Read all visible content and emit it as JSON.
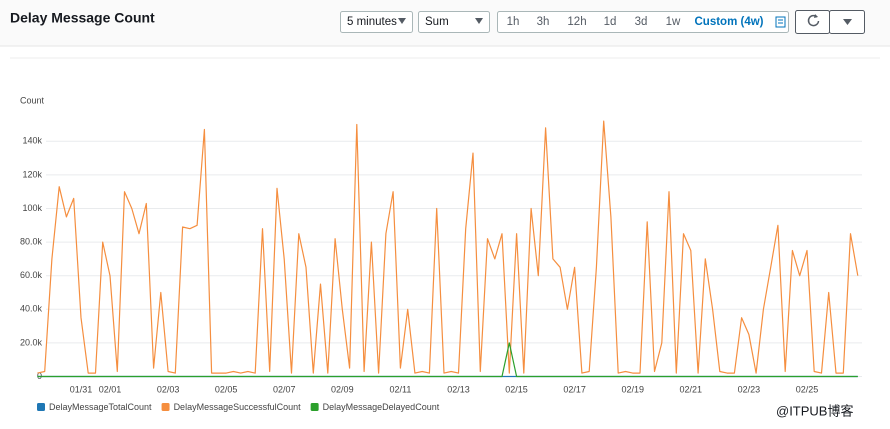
{
  "chart_data": {
    "type": "line",
    "title": "Delay Message Count",
    "y_label": "Count",
    "categories": [
      null,
      null,
      null,
      null,
      null,
      null,
      "01/31",
      null,
      null,
      null,
      "02/01",
      null,
      null,
      null,
      null,
      null,
      null,
      null,
      "02/03",
      null,
      null,
      null,
      null,
      null,
      null,
      null,
      "02/05",
      null,
      null,
      null,
      null,
      null,
      null,
      null,
      "02/07",
      null,
      null,
      null,
      null,
      null,
      null,
      null,
      "02/09",
      null,
      null,
      null,
      null,
      null,
      null,
      null,
      "02/11",
      null,
      null,
      null,
      null,
      null,
      null,
      null,
      "02/13",
      null,
      null,
      null,
      null,
      null,
      null,
      null,
      "02/15",
      null,
      null,
      null,
      null,
      null,
      null,
      null,
      "02/17",
      null,
      null,
      null,
      null,
      null,
      null,
      null,
      "02/19",
      null,
      null,
      null,
      null,
      null,
      null,
      null,
      "02/21",
      null,
      null,
      null,
      null,
      null,
      null,
      null,
      "02/23",
      null,
      null,
      null,
      null,
      null,
      null,
      null,
      "02/25",
      null,
      null,
      null,
      null,
      null,
      null,
      null
    ],
    "series": [
      {
        "name": "DelayMessageTotalCount",
        "color": "#1f77b4",
        "values": [
          0,
          0,
          0,
          0,
          0,
          0,
          0,
          0,
          0,
          0,
          0,
          0,
          0,
          0,
          0,
          0,
          0,
          0,
          0,
          0,
          0,
          0,
          0,
          0,
          0,
          0,
          0,
          0,
          0,
          0,
          0,
          0,
          0,
          0,
          0,
          0,
          0,
          0,
          0,
          0,
          0,
          0,
          0,
          0,
          0,
          0,
          0,
          0,
          0,
          0,
          0,
          0,
          0,
          0,
          0,
          0,
          0,
          0,
          0,
          0,
          0,
          0,
          0,
          0,
          0,
          0,
          0,
          0,
          0,
          0,
          0,
          0,
          0,
          0,
          0,
          0,
          0,
          0,
          0,
          0,
          0,
          0,
          0,
          0,
          0,
          0,
          0,
          0,
          0,
          0,
          0,
          0,
          0,
          0,
          0,
          0,
          0,
          0,
          0,
          0,
          0,
          0,
          0,
          0,
          0,
          0,
          0,
          0,
          0,
          0,
          0,
          0,
          0,
          0
        ]
      },
      {
        "name": "DelayMessageSuccessfulCount",
        "color": "#f58e3f",
        "values": [
          2000,
          3000,
          70000,
          113000,
          95000,
          106000,
          35000,
          2000,
          2000,
          80000,
          60000,
          3000,
          110000,
          100000,
          85000,
          103000,
          5000,
          50000,
          3000,
          2000,
          89000,
          88000,
          90000,
          147000,
          2000,
          2000,
          2000,
          3000,
          2000,
          3000,
          2000,
          88000,
          3000,
          112000,
          70000,
          2000,
          85000,
          65000,
          2000,
          55000,
          2000,
          82000,
          40000,
          5000,
          150000,
          3000,
          80000,
          2000,
          85000,
          110000,
          5000,
          40000,
          2000,
          3000,
          2000,
          100000,
          2000,
          3000,
          2000,
          88000,
          133000,
          3000,
          82000,
          70000,
          85000,
          2000,
          85000,
          2000,
          100000,
          60000,
          148000,
          70000,
          65000,
          40000,
          65000,
          2000,
          3000,
          65000,
          152000,
          95000,
          2000,
          3000,
          2000,
          2000,
          92000,
          3000,
          20000,
          110000,
          2000,
          85000,
          75000,
          2000,
          70000,
          40000,
          3000,
          2000,
          2000,
          35000,
          25000,
          2000,
          40000,
          65000,
          90000,
          3000,
          75000,
          60000,
          75000,
          3000,
          2000,
          50000,
          2000,
          2000,
          85000,
          60000
        ]
      },
      {
        "name": "DelayMessageDelayedCount",
        "color": "#2ca02c",
        "values": [
          0,
          0,
          0,
          0,
          0,
          0,
          0,
          0,
          0,
          0,
          0,
          0,
          0,
          0,
          0,
          0,
          0,
          0,
          0,
          0,
          0,
          0,
          0,
          0,
          0,
          0,
          0,
          0,
          0,
          0,
          0,
          0,
          0,
          0,
          0,
          0,
          0,
          0,
          0,
          0,
          0,
          0,
          0,
          0,
          0,
          0,
          0,
          0,
          0,
          0,
          0,
          0,
          0,
          0,
          0,
          0,
          0,
          0,
          0,
          0,
          0,
          0,
          0,
          0,
          0,
          20000,
          0,
          0,
          0,
          0,
          0,
          0,
          0,
          0,
          0,
          0,
          0,
          0,
          0,
          0,
          0,
          0,
          0,
          0,
          0,
          0,
          0,
          0,
          0,
          0,
          0,
          0,
          0,
          0,
          0,
          0,
          0,
          0,
          0,
          0,
          0,
          0,
          0,
          0,
          0,
          0,
          0,
          0,
          0,
          0,
          0,
          0,
          0,
          0
        ]
      }
    ],
    "ylim": [
      0,
      155000
    ],
    "yticks": [
      0,
      {
        "value": 20000,
        "label": "20.0k"
      },
      {
        "value": 40000,
        "label": "40.0k"
      },
      {
        "value": 60000,
        "label": "60.0k"
      },
      {
        "value": 80000,
        "label": "80.0k"
      },
      {
        "value": 100000,
        "label": "100k"
      },
      {
        "value": 120000,
        "label": "120k"
      },
      {
        "value": 140000,
        "label": "140k"
      }
    ],
    "grid": true
  },
  "toolbar": {
    "period": "5 minutes",
    "statistic": "Sum",
    "ranges": [
      "1h",
      "3h",
      "12h",
      "1d",
      "3d",
      "1w",
      "Custom (4w)"
    ]
  },
  "watermark": "@ITPUB博客"
}
